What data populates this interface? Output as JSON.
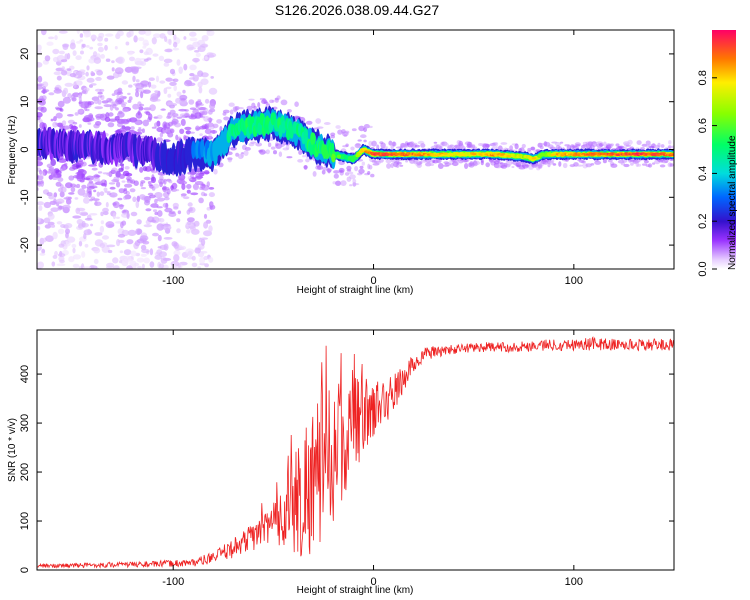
{
  "title": "S126.2026.038.09.44.G27",
  "chart_data": [
    {
      "type": "heatmap",
      "xlabel": "Height of straight line (km)",
      "ylabel": "Frequency (Hz)",
      "xlim": [
        -168,
        150
      ],
      "ylim": [
        -25,
        25
      ],
      "xticks": [
        -100,
        0,
        100
      ],
      "yticks": [
        -20,
        -10,
        0,
        10,
        20
      ],
      "colorbar": {
        "label": "Normalized spectral amplitude",
        "range": [
          0,
          1
        ],
        "ticks": [
          "0.0",
          "0.2",
          "0.4",
          "0.6",
          "0.8"
        ],
        "tick_values": [
          0,
          0.2,
          0.4,
          0.6,
          0.8
        ]
      },
      "ridge": {
        "x": [
          -168,
          -140,
          -120,
          -100,
          -90,
          -80,
          -70,
          -60,
          -50,
          -40,
          -30,
          -20,
          -10,
          -5,
          0,
          20,
          40,
          60,
          75,
          80,
          85,
          90,
          100,
          110,
          130,
          150
        ],
        "freq_hz": [
          1,
          0.5,
          0,
          -2,
          -1,
          -1,
          4,
          5,
          5.5,
          4,
          1,
          -1,
          -2,
          0,
          -1,
          -1,
          -1,
          -1,
          -1.5,
          -2,
          -1,
          -1,
          -1,
          -1,
          -1,
          -1
        ],
        "amplitude": [
          0.15,
          0.15,
          0.15,
          0.2,
          0.25,
          0.35,
          0.45,
          0.5,
          0.5,
          0.45,
          0.5,
          0.55,
          0.55,
          0.8,
          0.95,
          0.9,
          0.75,
          0.85,
          0.7,
          0.8,
          0.55,
          0.8,
          0.85,
          0.9,
          0.95,
          0.9
        ]
      }
    },
    {
      "type": "line",
      "xlabel": "Height of straight line (km)",
      "ylabel": "SNR (10 * v/v)",
      "xlim": [
        -168,
        150
      ],
      "ylim": [
        0,
        490
      ],
      "xticks": [
        -100,
        0,
        100
      ],
      "yticks": [
        0,
        100,
        200,
        300,
        400
      ],
      "series": [
        {
          "name": "SNR",
          "color": "#ee2222",
          "x": [
            -168,
            -140,
            -110,
            -90,
            -80,
            -70,
            -60,
            -50,
            -45,
            -40,
            -35,
            -30,
            -25,
            -20,
            -15,
            -10,
            -5,
            0,
            5,
            10,
            15,
            20,
            25,
            30,
            40,
            50,
            60,
            70,
            80,
            90,
            100,
            110,
            120,
            130,
            140,
            150
          ],
          "y": [
            8,
            10,
            12,
            15,
            25,
            45,
            70,
            90,
            110,
            130,
            160,
            190,
            220,
            240,
            270,
            290,
            320,
            330,
            340,
            360,
            390,
            420,
            440,
            445,
            450,
            455,
            455,
            455,
            458,
            460,
            460,
            462,
            460,
            460,
            460,
            460
          ],
          "spread": [
            4,
            5,
            6,
            8,
            12,
            20,
            30,
            50,
            70,
            120,
            140,
            160,
            150,
            140,
            120,
            100,
            80,
            60,
            50,
            40,
            30,
            20,
            15,
            12,
            10,
            10,
            10,
            10,
            12,
            12,
            12,
            14,
            12,
            12,
            12,
            12
          ]
        }
      ]
    }
  ]
}
